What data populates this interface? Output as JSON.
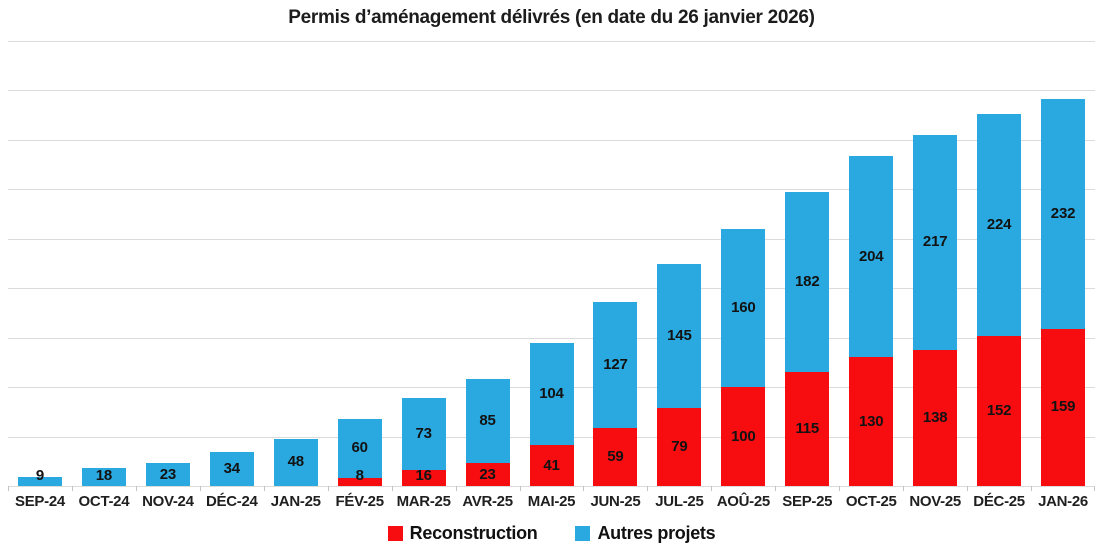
{
  "title": "Permis d’aménagement délivrés (en date du 26 janvier 2026)",
  "chart_data": {
    "type": "bar",
    "stacked": true,
    "title": "Permis d’aménagement délivrés (en date du 26 janvier 2026)",
    "categories": [
      "SEP-24",
      "OCT-24",
      "NOV-24",
      "DÉC-24",
      "JAN-25",
      "FÉV-25",
      "MAR-25",
      "AVR-25",
      "MAI-25",
      "JUN-25",
      "JUL-25",
      "AOÛ-25",
      "SEP-25",
      "OCT-25",
      "NOV-25",
      "DÉC-25",
      "JAN-26"
    ],
    "series": [
      {
        "name": "Reconstruction",
        "color": "#f70c10",
        "values": [
          0,
          0,
          0,
          0,
          0,
          8,
          16,
          23,
          41,
          59,
          79,
          100,
          115,
          130,
          138,
          152,
          159
        ]
      },
      {
        "name": "Autres projets",
        "color": "#2aa8e0",
        "values": [
          9,
          18,
          23,
          34,
          48,
          60,
          73,
          85,
          104,
          127,
          145,
          160,
          182,
          204,
          217,
          224,
          232
        ]
      }
    ],
    "xlabel": "",
    "ylabel": "",
    "ylim": [
      0,
      450
    ],
    "gridline_step": 50,
    "grid": true,
    "y_axis_labels_visible": false,
    "data_labels": true,
    "legend_position": "bottom"
  },
  "styles": {
    "grid_color": "#dbdbdb",
    "tick_color": "#c4c4c4",
    "data_label_color": "#121212",
    "axis_label_color": "#1f1f1f",
    "title_color": "#1c1c1c",
    "background": "#ffffff"
  }
}
